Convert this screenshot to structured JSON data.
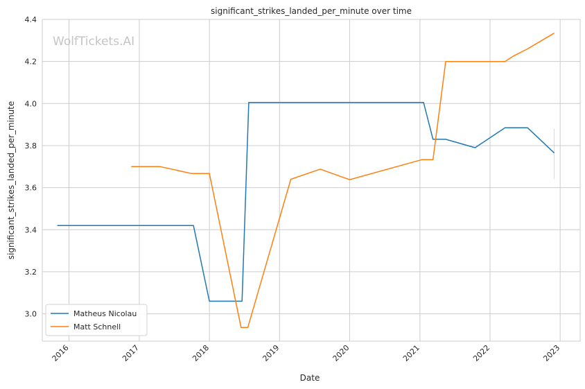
{
  "chart_data": {
    "type": "line",
    "title": "significant_strikes_landed_per_minute over time",
    "xlabel": "Date",
    "ylabel": "significant_strikes_landed_per_minute",
    "watermark": "WolfTickets.AI",
    "xlim": [
      "2015-08-15",
      "2023-04-15"
    ],
    "ylim": [
      2.87,
      4.4
    ],
    "x_ticks": [
      "2016",
      "2017",
      "2018",
      "2019",
      "2020",
      "2021",
      "2022",
      "2023"
    ],
    "y_ticks": [
      "3.0",
      "3.2",
      "3.4",
      "3.6",
      "3.8",
      "4.0",
      "4.2",
      "4.4"
    ],
    "grid": true,
    "legend_position": "lower-left",
    "series": [
      {
        "name": "Matheus Nicolau",
        "color": "#1f77b4",
        "points": [
          [
            "2015-11-01",
            3.42
          ],
          [
            "2017-10-10",
            3.42
          ],
          [
            "2018-01-01",
            3.06
          ],
          [
            "2018-06-20",
            3.06
          ],
          [
            "2018-07-25",
            4.005
          ],
          [
            "2021-01-20",
            4.005
          ],
          [
            "2021-03-10",
            3.83
          ],
          [
            "2021-05-15",
            3.83
          ],
          [
            "2021-10-15",
            3.79
          ],
          [
            "2022-03-20",
            3.885
          ],
          [
            "2022-07-15",
            3.885
          ],
          [
            "2022-12-01",
            3.765
          ]
        ]
      },
      {
        "name": "Matt Schnell",
        "color": "#ff7f0e",
        "points": [
          [
            "2016-11-20",
            3.7
          ],
          [
            "2017-04-20",
            3.7
          ],
          [
            "2017-10-01",
            3.667
          ],
          [
            "2018-01-01",
            3.667
          ],
          [
            "2018-06-15",
            2.935
          ],
          [
            "2018-07-20",
            2.935
          ],
          [
            "2019-03-01",
            3.64
          ],
          [
            "2019-08-01",
            3.688
          ],
          [
            "2020-01-01",
            3.638
          ],
          [
            "2021-01-10",
            3.733
          ],
          [
            "2021-03-10",
            3.733
          ],
          [
            "2021-05-15",
            4.2
          ],
          [
            "2022-03-20",
            4.2
          ],
          [
            "2022-05-01",
            4.225
          ],
          [
            "2022-07-15",
            4.26
          ],
          [
            "2022-12-01",
            4.335
          ]
        ]
      }
    ],
    "faint_marks": [
      {
        "color": "#1f77b4",
        "x": "2022-12-01",
        "y_range": [
          3.64,
          3.88
        ]
      }
    ]
  }
}
